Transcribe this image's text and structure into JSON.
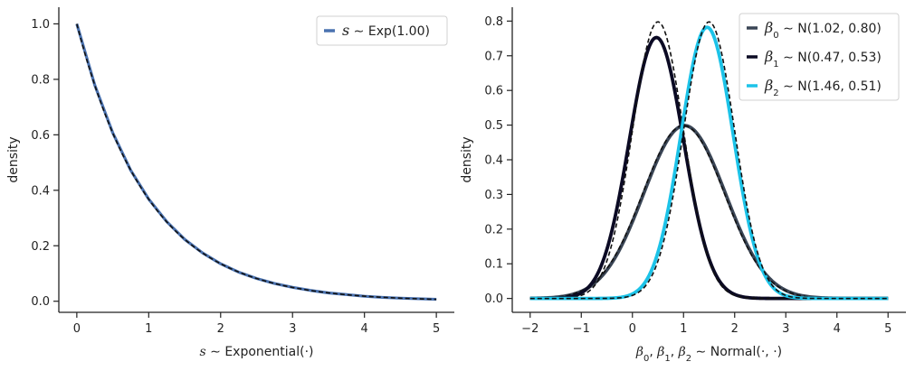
{
  "chart_data": [
    {
      "type": "line",
      "xlabel_var": "s",
      "xlabel_rest": " ∼  Exponential(·)",
      "ylabel": "density",
      "xlim": [
        -0.25,
        5.25
      ],
      "ylim": [
        -0.04,
        1.06
      ],
      "xticks": [
        0,
        1,
        2,
        3,
        4,
        5
      ],
      "yticks": [
        0.0,
        0.2,
        0.4,
        0.6,
        0.8,
        1.0
      ],
      "ytick_labels": [
        "0.0",
        "0.2",
        "0.4",
        "0.6",
        "0.8",
        "1.0"
      ],
      "xtick_labels": [
        "0",
        "1",
        "2",
        "3",
        "4",
        "5"
      ],
      "series": [
        {
          "legend_var": "s",
          "legend_sub": "",
          "legend_rest": " ∼  Exp(1.00)",
          "dist": "exponential",
          "rate": 1.0,
          "x": [
            0.0,
            0.25,
            0.5,
            0.75,
            1.0,
            1.25,
            1.5,
            1.75,
            2.0,
            2.25,
            2.5,
            2.75,
            3.0,
            3.25,
            3.5,
            3.75,
            4.0,
            4.25,
            4.5,
            4.75,
            5.0
          ],
          "y": [
            1.0,
            0.779,
            0.607,
            0.472,
            0.368,
            0.287,
            0.223,
            0.174,
            0.135,
            0.105,
            0.082,
            0.064,
            0.05,
            0.039,
            0.03,
            0.024,
            0.018,
            0.014,
            0.011,
            0.009,
            0.007
          ],
          "color": "#4a72b0",
          "reference_color": "#111111"
        }
      ],
      "legend": "top-right"
    },
    {
      "type": "line",
      "xlabel_parts": [
        "β",
        "0",
        ", ",
        "β",
        "1",
        ", ",
        "β",
        "2"
      ],
      "xlabel_rest": " ∼  Normal(·, ·)",
      "ylabel": "density",
      "xlim": [
        -2.35,
        5.35
      ],
      "ylim": [
        -0.04,
        0.84
      ],
      "xticks": [
        -2,
        -1,
        0,
        1,
        2,
        3,
        4,
        5
      ],
      "xtick_labels": [
        "−2",
        "−1",
        "0",
        "1",
        "2",
        "3",
        "4",
        "5"
      ],
      "yticks": [
        0.0,
        0.1,
        0.2,
        0.3,
        0.4,
        0.5,
        0.6,
        0.7,
        0.8
      ],
      "ytick_labels": [
        "0.0",
        "0.1",
        "0.2",
        "0.3",
        "0.4",
        "0.5",
        "0.6",
        "0.7",
        "0.8"
      ],
      "series": [
        {
          "legend_var": "β",
          "legend_sub": "0",
          "legend_rest": " ∼  N(1.02, 0.80)",
          "dist": "normal",
          "mean": 1.02,
          "sd": 0.8,
          "color": "#3a4555",
          "reference": {
            "mean": 1.0,
            "sd": 0.8
          }
        },
        {
          "legend_var": "β",
          "legend_sub": "1",
          "legend_rest": " ∼  N(0.47, 0.53)",
          "dist": "normal",
          "mean": 0.47,
          "sd": 0.53,
          "color": "#0b0a24",
          "reference": {
            "mean": 0.5,
            "sd": 0.5
          }
        },
        {
          "legend_var": "β",
          "legend_sub": "2",
          "legend_rest": " ∼  N(1.46, 0.51)",
          "dist": "normal",
          "mean": 1.46,
          "sd": 0.51,
          "color": "#1cc3e8",
          "reference": {
            "mean": 1.5,
            "sd": 0.5
          }
        }
      ],
      "legend": "top-right"
    }
  ]
}
